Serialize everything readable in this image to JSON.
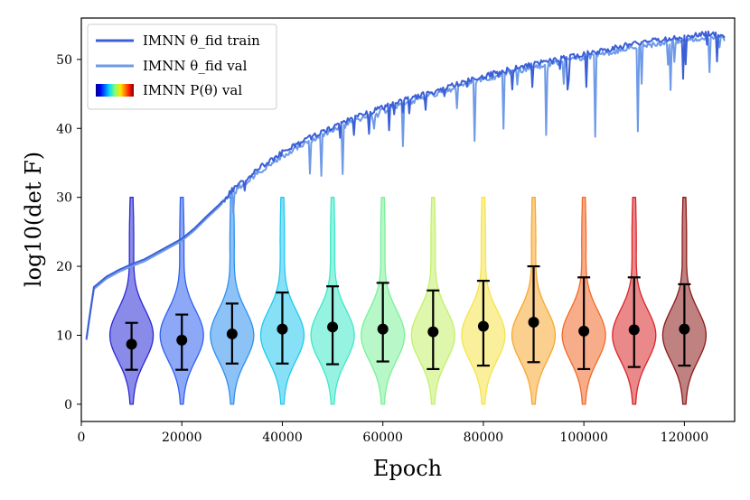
{
  "chart_data": {
    "type": "line",
    "xlabel": "Epoch",
    "ylabel": "log10(det F)",
    "xlim": [
      0,
      130000
    ],
    "ylim": [
      -2.5,
      56
    ],
    "xticks": [
      0,
      20000,
      40000,
      60000,
      80000,
      100000,
      120000
    ],
    "xtick_labels": [
      "0",
      "20000",
      "40000",
      "60000",
      "80000",
      "100000",
      "120000"
    ],
    "yticks": [
      0,
      10,
      20,
      30,
      40,
      50
    ],
    "ytick_labels": [
      "0",
      "10",
      "20",
      "30",
      "40",
      "50"
    ],
    "legend": [
      {
        "text": "IMNN θ_fid train",
        "color": "#3b5fd6"
      },
      {
        "text": "IMNN θ_fid val",
        "color": "#6e9ae8"
      },
      {
        "text": "IMNN P(θ) val",
        "color": "gradient-jet"
      }
    ],
    "series": [
      {
        "name": "IMNN θ_fid train",
        "color": "#3b5fd6",
        "x": [
          1000,
          2500,
          5000,
          7500,
          10000,
          12500,
          15000,
          17500,
          20000,
          22500,
          25000,
          27500,
          30000,
          32500,
          35000,
          37500,
          40000,
          42500,
          45000,
          47500,
          50000,
          55000,
          60000,
          65000,
          70000,
          75000,
          80000,
          85000,
          90000,
          95000,
          100000,
          105000,
          110000,
          115000,
          120000,
          125000,
          128000
        ],
        "values": [
          9.5,
          17,
          18.5,
          19.5,
          20.3,
          21,
          22,
          23,
          24,
          25.5,
          27.3,
          29,
          31,
          32.5,
          34,
          35.3,
          36.5,
          37.5,
          38.5,
          39.3,
          40.2,
          41.7,
          43,
          44.3,
          45.3,
          46.5,
          47.5,
          48.5,
          49.3,
          50,
          50.8,
          51.5,
          52.3,
          52.8,
          53.3,
          53.8,
          53.5
        ]
      },
      {
        "name": "IMNN θ_fid val",
        "color": "#6e9ae8",
        "x": [
          1000,
          2500,
          5000,
          7500,
          10000,
          12500,
          15000,
          17500,
          20000,
          22500,
          25000,
          27500,
          30000,
          32500,
          35000,
          37500,
          40000,
          42500,
          45000,
          47500,
          50000,
          55000,
          60000,
          65000,
          70000,
          75000,
          80000,
          85000,
          90000,
          95000,
          100000,
          105000,
          110000,
          115000,
          120000,
          125000,
          128000
        ],
        "values": [
          9.3,
          16.7,
          18.2,
          19.2,
          20,
          20.7,
          21.7,
          22.7,
          23.7,
          25.2,
          27,
          28.7,
          30.6,
          32,
          33.5,
          34.8,
          36,
          37,
          38,
          38.8,
          39.7,
          41.2,
          42.5,
          43.8,
          44.8,
          46,
          47,
          48,
          48.8,
          49.5,
          50.3,
          51,
          51.8,
          52.3,
          52.8,
          53.2,
          53
        ]
      }
    ],
    "violins": [
      {
        "epoch": 10000,
        "median": 8.7,
        "lower": 5.0,
        "upper": 11.8,
        "min": 0,
        "max": 30,
        "color": "#2a2ad6"
      },
      {
        "epoch": 20000,
        "median": 9.3,
        "lower": 5.0,
        "upper": 13.0,
        "min": 0,
        "max": 30,
        "color": "#3060f0"
      },
      {
        "epoch": 30000,
        "median": 10.2,
        "lower": 5.9,
        "upper": 14.6,
        "min": 0,
        "max": 30,
        "color": "#2f8ff0"
      },
      {
        "epoch": 40000,
        "median": 10.9,
        "lower": 5.9,
        "upper": 16.2,
        "min": 0,
        "max": 30,
        "color": "#22c8f0"
      },
      {
        "epoch": 50000,
        "median": 11.2,
        "lower": 5.8,
        "upper": 17.1,
        "min": 0,
        "max": 30,
        "color": "#40e8c8"
      },
      {
        "epoch": 60000,
        "median": 10.9,
        "lower": 6.2,
        "upper": 17.6,
        "min": 0,
        "max": 30,
        "color": "#7cf09a"
      },
      {
        "epoch": 70000,
        "median": 10.5,
        "lower": 5.1,
        "upper": 16.5,
        "min": 0,
        "max": 30,
        "color": "#c4f06a"
      },
      {
        "epoch": 80000,
        "median": 11.3,
        "lower": 5.6,
        "upper": 17.9,
        "min": 0,
        "max": 30,
        "color": "#f5e44a"
      },
      {
        "epoch": 90000,
        "median": 11.9,
        "lower": 6.1,
        "upper": 20.0,
        "min": 0,
        "max": 30,
        "color": "#f7a830"
      },
      {
        "epoch": 100000,
        "median": 10.6,
        "lower": 5.1,
        "upper": 18.4,
        "min": 0,
        "max": 30,
        "color": "#f26a2a"
      },
      {
        "epoch": 110000,
        "median": 10.8,
        "lower": 5.4,
        "upper": 18.4,
        "min": 0,
        "max": 30,
        "color": "#d9262a"
      },
      {
        "epoch": 120000,
        "median": 10.9,
        "lower": 5.6,
        "upper": 17.4,
        "min": 0,
        "max": 30,
        "color": "#8c1a1a"
      }
    ]
  }
}
